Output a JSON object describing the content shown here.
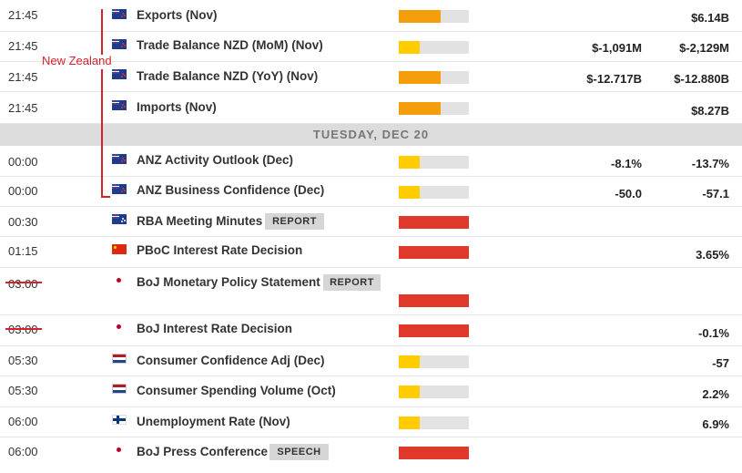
{
  "colors": {
    "impact_medium": "#f59e0b",
    "impact_low": "#ffcc00",
    "impact_high": "#e0392b",
    "track": "#e2e2e2",
    "annotation": "#d8202a"
  },
  "annotation_label": "New Zealand",
  "day_header": "TUESDAY, DEC 20",
  "events": [
    {
      "time": "21:45",
      "flag": "nz-flag-icon",
      "name": "Exports (Nov)",
      "impact": "medium",
      "impact_fraction": 0.6,
      "forecast": "",
      "previous": "$6.14B"
    },
    {
      "time": "21:45",
      "flag": "nz-flag-icon",
      "name": "Trade Balance NZD (MoM) (Nov)",
      "impact": "low",
      "impact_fraction": 0.3,
      "forecast": "$-1,091M",
      "previous": "$-2,129M"
    },
    {
      "time": "21:45",
      "flag": "nz-flag-icon",
      "name": "Trade Balance NZD (YoY) (Nov)",
      "impact": "medium",
      "impact_fraction": 0.6,
      "forecast": "$-12.717B",
      "previous": "$-12.880B"
    },
    {
      "time": "21:45",
      "flag": "nz-flag-icon",
      "name": "Imports (Nov)",
      "impact": "medium",
      "impact_fraction": 0.6,
      "forecast": "",
      "previous": "$8.27B"
    },
    {
      "time": "00:00",
      "flag": "nz-flag-icon",
      "name": "ANZ Activity Outlook (Dec)",
      "impact": "low",
      "impact_fraction": 0.3,
      "forecast": "-8.1%",
      "previous": "-13.7%"
    },
    {
      "time": "00:00",
      "flag": "nz-flag-icon",
      "name": "ANZ Business Confidence (Dec)",
      "impact": "low",
      "impact_fraction": 0.3,
      "forecast": "-50.0",
      "previous": "-57.1"
    },
    {
      "time": "00:30",
      "flag": "au-flag-icon",
      "name": "RBA Meeting Minutes",
      "tag": "REPORT",
      "impact": "high",
      "impact_fraction": 1.0,
      "forecast": "",
      "previous": ""
    },
    {
      "time": "01:15",
      "flag": "cn-flag-icon",
      "name": "PBoC Interest Rate Decision",
      "impact": "high",
      "impact_fraction": 1.0,
      "forecast": "",
      "previous": "3.65%"
    },
    {
      "time": "03:00",
      "flag": "jp-flag-icon",
      "name": "BoJ Monetary Policy Statement",
      "tag": "REPORT",
      "impact": "high",
      "impact_fraction": 1.0,
      "forecast": "",
      "previous": ""
    },
    {
      "time": "03:00",
      "flag": "jp-flag-icon",
      "name": "BoJ Interest Rate Decision",
      "impact": "high",
      "impact_fraction": 1.0,
      "forecast": "",
      "previous": "-0.1%"
    },
    {
      "time": "05:30",
      "flag": "nl-flag-icon",
      "name": "Consumer Confidence Adj (Dec)",
      "impact": "low",
      "impact_fraction": 0.3,
      "forecast": "",
      "previous": "-57"
    },
    {
      "time": "05:30",
      "flag": "nl-flag-icon",
      "name": "Consumer Spending Volume (Oct)",
      "impact": "low",
      "impact_fraction": 0.3,
      "forecast": "",
      "previous": "2.2%"
    },
    {
      "time": "06:00",
      "flag": "fi-flag-icon",
      "name": "Unemployment Rate (Nov)",
      "impact": "low",
      "impact_fraction": 0.3,
      "forecast": "",
      "previous": "6.9%"
    },
    {
      "time": "06:00",
      "flag": "jp-flag-icon",
      "name": "BoJ Press Conference",
      "tag": "SPEECH",
      "impact": "high",
      "impact_fraction": 1.0,
      "forecast": "",
      "previous": ""
    }
  ]
}
